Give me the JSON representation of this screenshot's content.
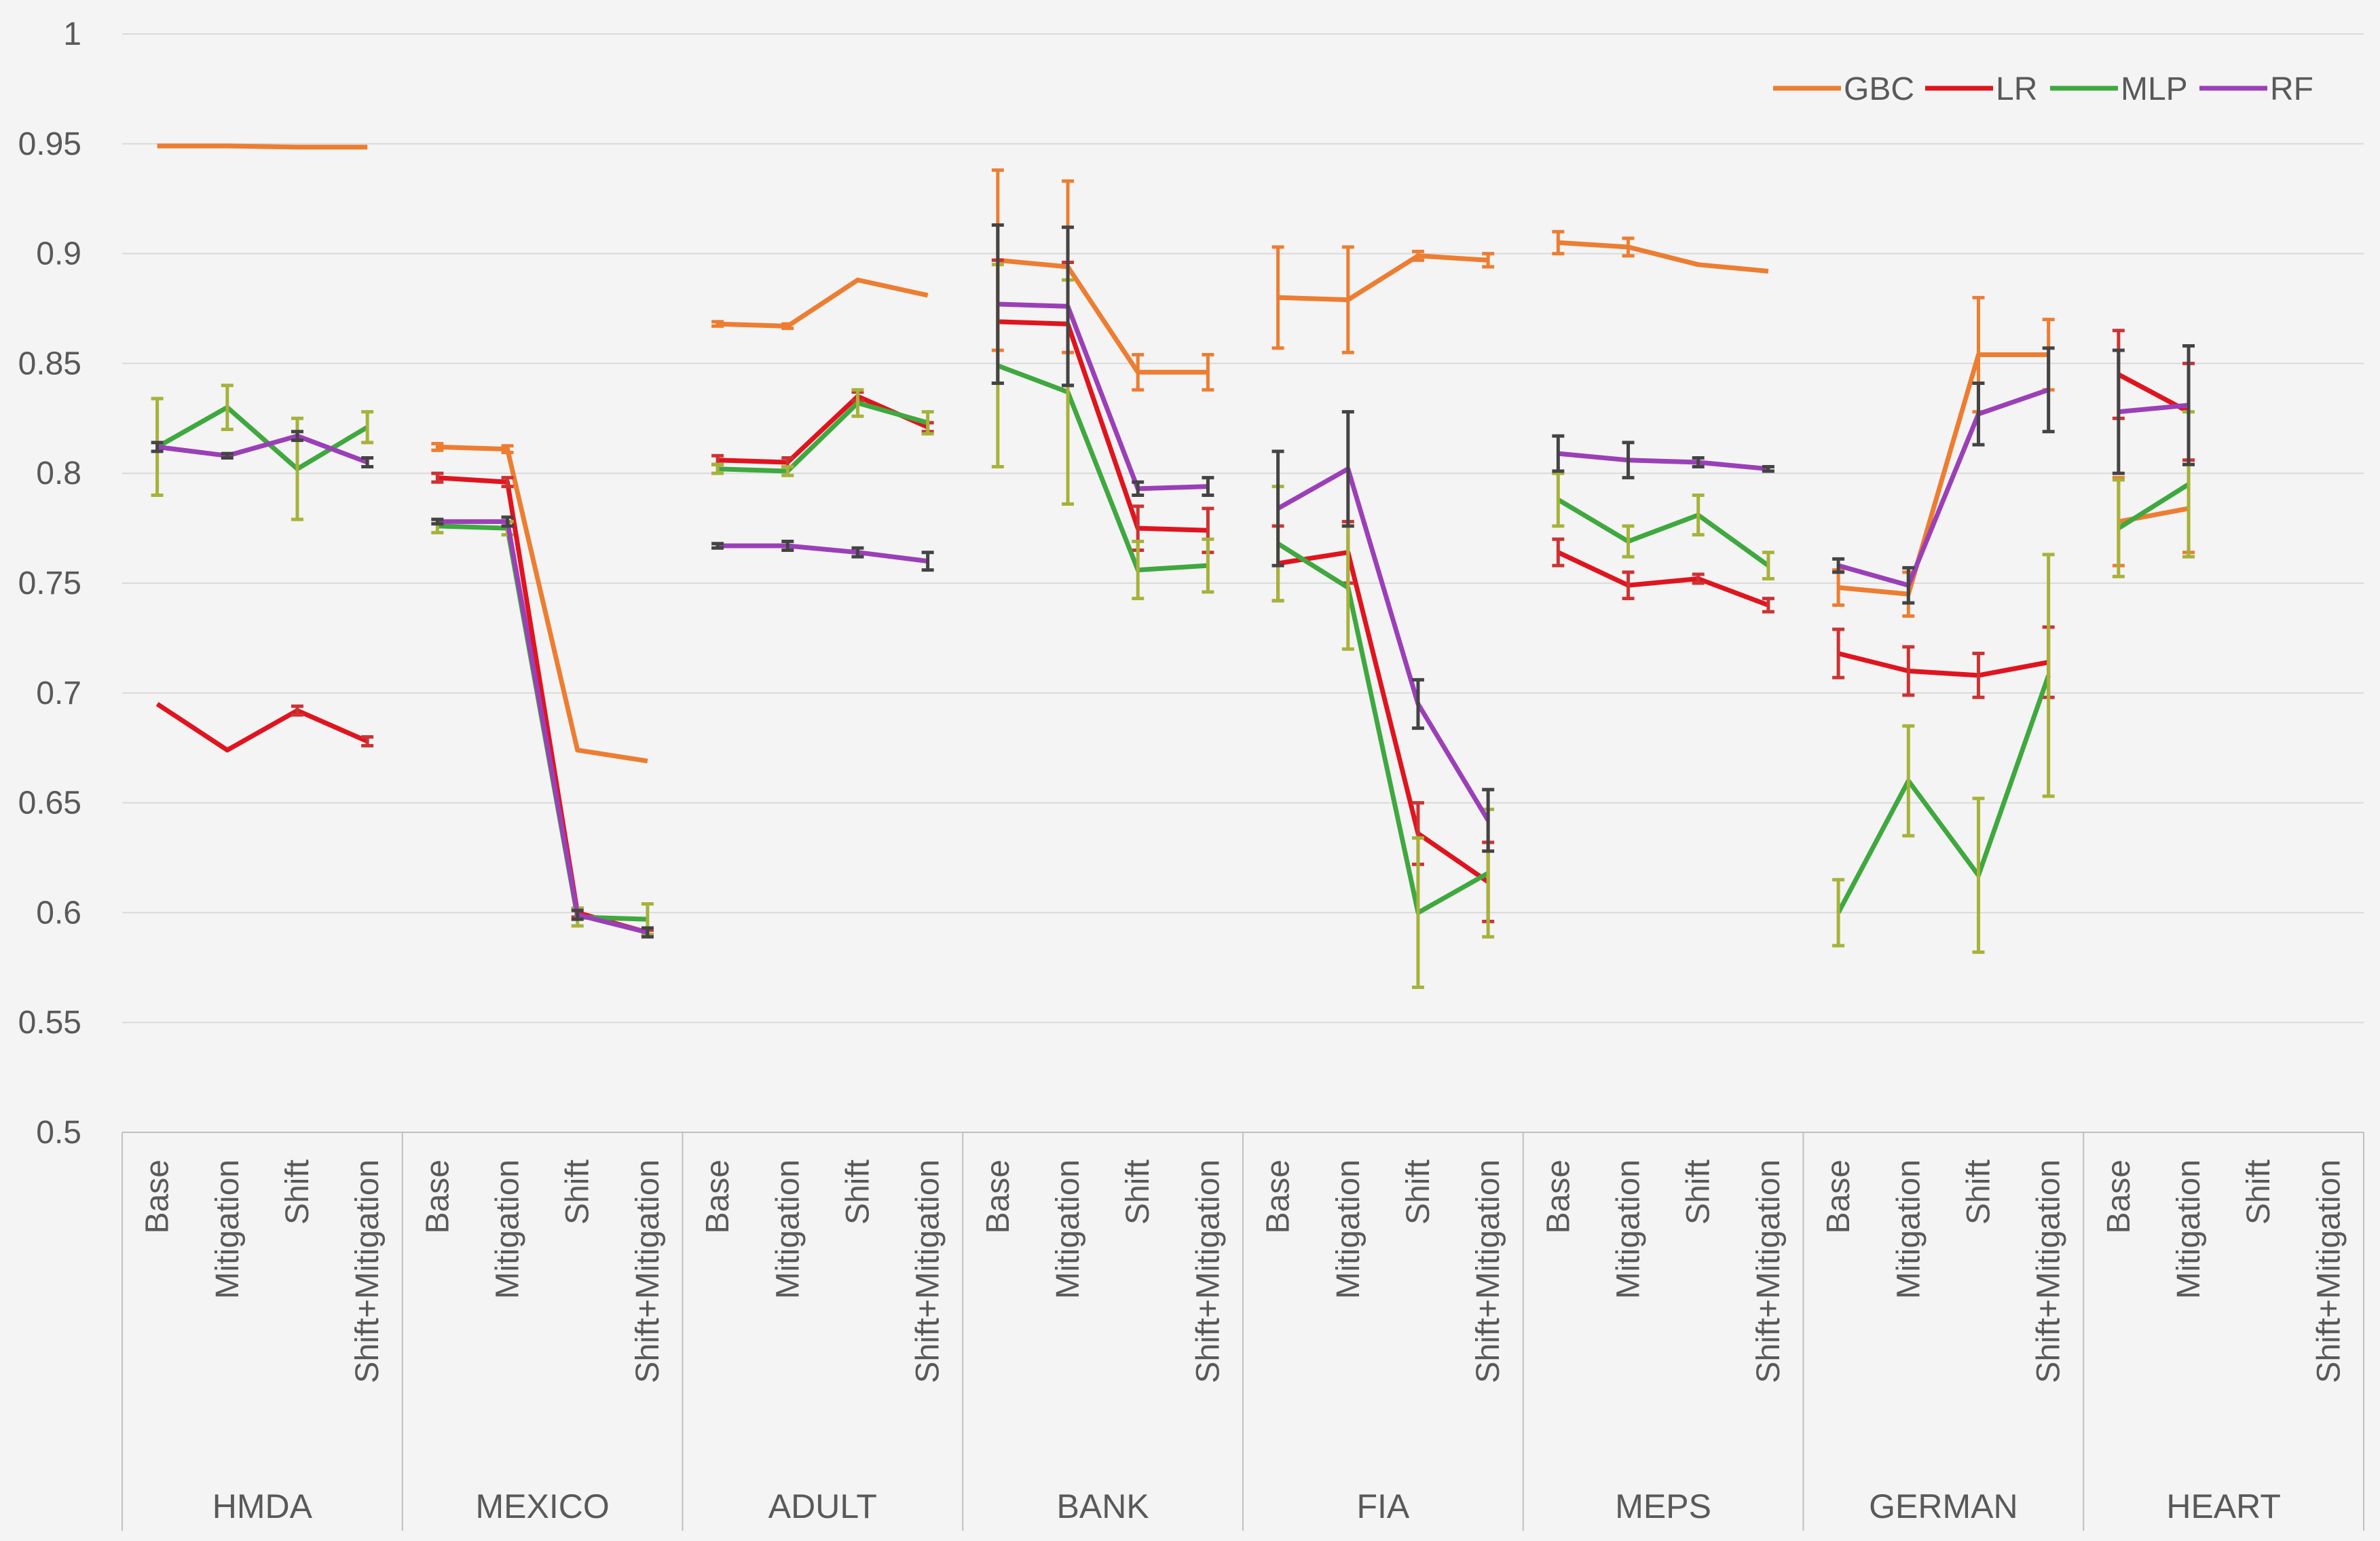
{
  "chart_data": {
    "type": "line",
    "title": "",
    "xlabel": "",
    "ylabel": "",
    "ylim": [
      0.5,
      1.0
    ],
    "yticks": [
      "0.5",
      "0.55",
      "0.6",
      "0.65",
      "0.7",
      "0.75",
      "0.8",
      "0.85",
      "0.9",
      "0.95",
      "1"
    ],
    "grid": true,
    "legend_position": "top-right",
    "conditions": [
      "Base",
      "Mitigation",
      "Shift",
      "Shift+Mitigation"
    ],
    "groups": [
      "HMDA",
      "MEXICO",
      "ADULT",
      "BANK",
      "FIA",
      "MEPS",
      "GERMAN",
      "HEART"
    ],
    "series": [
      {
        "name": "GBC",
        "color": "#ed7d31",
        "errorbar_color": "#ed7d31",
        "values": [
          [
            0.949,
            0.949,
            0.9485,
            0.9485
          ],
          [
            0.812,
            0.811,
            0.674,
            0.669
          ],
          [
            0.868,
            0.867,
            0.888,
            0.881
          ],
          [
            0.897,
            0.894,
            0.846,
            0.846
          ],
          [
            0.88,
            0.879,
            0.899,
            0.897
          ],
          [
            0.905,
            0.903,
            0.895,
            0.892
          ],
          [
            0.748,
            0.745,
            0.854,
            0.854
          ],
          [
            0.778,
            0.784,
            null,
            null
          ]
        ],
        "errors": [
          [
            0,
            0,
            0,
            0
          ],
          [
            0.0015,
            0.0015,
            0,
            0
          ],
          [
            0.001,
            0.001,
            0,
            0
          ],
          [
            0.041,
            0.039,
            0.008,
            0.008
          ],
          [
            0.023,
            0.024,
            0.002,
            0.003
          ],
          [
            0.005,
            0.004,
            0,
            0
          ],
          [
            0.008,
            0.01,
            0.026,
            0.016
          ],
          [
            0.02,
            0.02,
            null,
            null
          ]
        ]
      },
      {
        "name": "LR",
        "color": "#e0141e",
        "errorbar_color": "#cc3333",
        "values": [
          [
            0.695,
            0.674,
            0.692,
            0.678
          ],
          [
            0.798,
            0.796,
            0.6,
            0.591
          ],
          [
            0.806,
            0.805,
            0.835,
            0.821
          ],
          [
            0.869,
            0.868,
            0.775,
            0.774
          ],
          [
            0.759,
            0.764,
            0.636,
            0.614
          ],
          [
            0.764,
            0.749,
            0.752,
            0.74
          ],
          [
            0.718,
            0.71,
            0.708,
            0.714
          ],
          [
            0.845,
            0.828,
            null,
            null
          ]
        ],
        "errors": [
          [
            0,
            0,
            0.002,
            0.002
          ],
          [
            0.002,
            0.002,
            0.002,
            0.001
          ],
          [
            0.002,
            0.002,
            0.002,
            0.002
          ],
          [
            0.028,
            0.028,
            0.01,
            0.01
          ],
          [
            0.017,
            0.014,
            0.014,
            0.018
          ],
          [
            0.006,
            0.006,
            0.002,
            0.003
          ],
          [
            0.011,
            0.011,
            0.01,
            0.016
          ],
          [
            0.02,
            0.022,
            null,
            null
          ]
        ]
      },
      {
        "name": "MLP",
        "color": "#3fa83f",
        "errorbar_color": "#a6b23a",
        "values": [
          [
            0.812,
            0.83,
            0.802,
            0.821
          ],
          [
            0.776,
            0.775,
            0.598,
            0.597
          ],
          [
            0.802,
            0.801,
            0.832,
            0.823
          ],
          [
            0.849,
            0.837,
            0.756,
            0.758
          ],
          [
            0.768,
            0.748,
            0.6,
            0.618
          ],
          [
            0.788,
            0.769,
            0.781,
            0.758
          ],
          [
            0.6,
            0.66,
            0.617,
            0.708
          ],
          [
            0.775,
            0.795,
            null,
            null
          ]
        ],
        "errors": [
          [
            0.022,
            0.01,
            0.023,
            0.007
          ],
          [
            0.003,
            0.003,
            0.004,
            0.007
          ],
          [
            0.002,
            0.002,
            0.006,
            0.005
          ],
          [
            0.046,
            0.051,
            0.013,
            0.012
          ],
          [
            0.026,
            0.028,
            0.034,
            0.029
          ],
          [
            0.012,
            0.007,
            0.009,
            0.006
          ],
          [
            0.015,
            0.025,
            0.035,
            0.055
          ],
          [
            0.022,
            0.033,
            null,
            null
          ]
        ]
      },
      {
        "name": "RF",
        "color": "#9b3fb8",
        "errorbar_color": "#444444",
        "values": [
          [
            0.812,
            0.808,
            0.817,
            0.805
          ],
          [
            0.778,
            0.778,
            0.599,
            0.591
          ],
          [
            0.767,
            0.767,
            0.764,
            0.76
          ],
          [
            0.877,
            0.876,
            0.793,
            0.794
          ],
          [
            0.784,
            0.802,
            0.695,
            0.642
          ],
          [
            0.809,
            0.806,
            0.805,
            0.802
          ],
          [
            0.758,
            0.749,
            0.827,
            0.838
          ],
          [
            0.828,
            0.831,
            null,
            null
          ]
        ],
        "errors": [
          [
            0.002,
            0.001,
            0.002,
            0.002
          ],
          [
            0.001,
            0.002,
            0.002,
            0.002
          ],
          [
            0.001,
            0.002,
            0.002,
            0.004
          ],
          [
            0.036,
            0.036,
            0.003,
            0.004
          ],
          [
            0.026,
            0.026,
            0.011,
            0.014
          ],
          [
            0.008,
            0.008,
            0.002,
            0.001
          ],
          [
            0.003,
            0.008,
            0.014,
            0.019
          ],
          [
            0.028,
            0.027,
            null,
            null
          ]
        ]
      }
    ]
  }
}
